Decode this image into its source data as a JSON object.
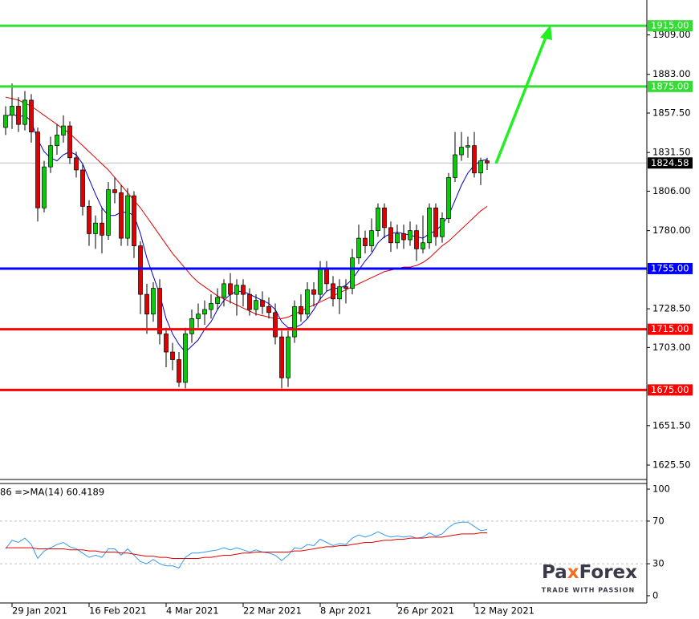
{
  "chart_data": [
    {
      "type": "candlestick",
      "x": [
        null,
        "29 Jan 2021",
        null,
        null,
        null,
        null,
        null,
        null,
        null,
        null,
        null,
        null,
        null,
        "16 Feb 2021",
        null,
        null,
        null,
        null,
        null,
        null,
        null,
        null,
        null,
        null,
        null,
        "4 Mar 2021",
        null,
        null,
        null,
        null,
        null,
        null,
        null,
        null,
        null,
        null,
        null,
        "22 Mar 2021",
        null,
        null,
        null,
        null,
        null,
        null,
        null,
        null,
        null,
        null,
        null,
        "8 Apr 2021",
        null,
        null,
        null,
        null,
        null,
        null,
        null,
        null,
        null,
        null,
        null,
        "26 Apr 2021",
        null,
        null,
        null,
        null,
        null,
        null,
        null,
        null,
        null,
        null,
        null,
        "12 May 2021",
        null,
        null
      ],
      "open": [
        1848,
        1856,
        1862,
        1850,
        1866,
        1845,
        1795,
        1822,
        1836,
        1843,
        1849,
        1828,
        1820,
        1796,
        1778,
        1785,
        1777,
        1807,
        1805,
        1775,
        1803,
        1770,
        1738,
        1725,
        1742,
        1712,
        1700,
        1695,
        1680,
        1712,
        1722,
        1725,
        1728,
        1732,
        1736,
        1745,
        1738,
        1744,
        1738,
        1728,
        1734,
        1730,
        1726,
        1710,
        1683,
        1710,
        1730,
        1725,
        1741,
        1738,
        1755,
        1745,
        1735,
        1743,
        1742,
        1762,
        1775,
        1770,
        1780,
        1795,
        1782,
        1772,
        1778,
        1774,
        1780,
        1768,
        1772,
        1795,
        1776,
        1788,
        1815,
        1830,
        1835,
        1836,
        1818,
        1826
      ],
      "high": [
        1862,
        1877,
        1868,
        1872,
        1870,
        1848,
        1826,
        1842,
        1850,
        1856,
        1852,
        1832,
        1824,
        1800,
        1790,
        1795,
        1812,
        1815,
        1810,
        1808,
        1806,
        1773,
        1745,
        1746,
        1748,
        1716,
        1706,
        1700,
        1716,
        1728,
        1732,
        1734,
        1738,
        1742,
        1748,
        1752,
        1748,
        1748,
        1742,
        1738,
        1740,
        1736,
        1732,
        1714,
        1714,
        1734,
        1738,
        1746,
        1746,
        1760,
        1760,
        1750,
        1748,
        1748,
        1768,
        1784,
        1780,
        1788,
        1798,
        1798,
        1786,
        1784,
        1784,
        1786,
        1784,
        1790,
        1798,
        1798,
        1792,
        1818,
        1845,
        1845,
        1842,
        1845,
        1828,
        1828
      ],
      "low": [
        1843,
        1847,
        1845,
        1846,
        1838,
        1786,
        1792,
        1818,
        1830,
        1838,
        1824,
        1815,
        1790,
        1770,
        1768,
        1765,
        1774,
        1798,
        1770,
        1770,
        1762,
        1725,
        1712,
        1720,
        1705,
        1690,
        1688,
        1677,
        1676,
        1706,
        1716,
        1718,
        1722,
        1728,
        1730,
        1732,
        1724,
        1730,
        1724,
        1724,
        1725,
        1722,
        1705,
        1676,
        1677,
        1706,
        1720,
        1722,
        1730,
        1734,
        1740,
        1730,
        1725,
        1732,
        1738,
        1758,
        1765,
        1766,
        1776,
        1775,
        1766,
        1768,
        1768,
        1770,
        1760,
        1765,
        1768,
        1770,
        1772,
        1785,
        1812,
        1826,
        1828,
        1815,
        1810,
        1820
      ],
      "close": [
        1856,
        1862,
        1850,
        1866,
        1845,
        1795,
        1822,
        1836,
        1843,
        1849,
        1828,
        1820,
        1796,
        1778,
        1785,
        1777,
        1807,
        1805,
        1775,
        1803,
        1770,
        1738,
        1725,
        1742,
        1712,
        1700,
        1695,
        1680,
        1712,
        1722,
        1725,
        1728,
        1732,
        1736,
        1745,
        1738,
        1744,
        1738,
        1728,
        1734,
        1730,
        1726,
        1710,
        1683,
        1710,
        1730,
        1725,
        1741,
        1738,
        1755,
        1745,
        1735,
        1743,
        1742,
        1762,
        1775,
        1770,
        1780,
        1795,
        1782,
        1772,
        1778,
        1774,
        1780,
        1768,
        1772,
        1795,
        1776,
        1788,
        1815,
        1830,
        1835,
        1836,
        1818,
        1826,
        1824.58
      ],
      "up_color": "#00d000",
      "down_color": "#e00000",
      "overlays": [
        {
          "color": "#0000cc",
          "values": [
            1855,
            1857,
            1855,
            1856,
            1852,
            1840,
            1832,
            1828,
            1826,
            1830,
            1832,
            1830,
            1824,
            1814,
            1804,
            1795,
            1790,
            1790,
            1792,
            1792,
            1790,
            1778,
            1762,
            1750,
            1738,
            1722,
            1712,
            1705,
            1700,
            1704,
            1708,
            1715,
            1720,
            1728,
            1734,
            1738,
            1740,
            1740,
            1738,
            1736,
            1734,
            1732,
            1728,
            1720,
            1716,
            1716,
            1718,
            1722,
            1728,
            1735,
            1740,
            1742,
            1742,
            1744,
            1748,
            1754,
            1760,
            1765,
            1772,
            1776,
            1778,
            1779,
            1778,
            1777,
            1776,
            1775,
            1778,
            1780,
            1784,
            1790,
            1800,
            1810,
            1818,
            1823,
            1826,
            1827
          ]
        },
        {
          "color": "#e00000",
          "values": [
            1868,
            1867,
            1866,
            1864,
            1862,
            1859,
            1856,
            1853,
            1850,
            1847,
            1844,
            1840,
            1836,
            1832,
            1828,
            1824,
            1820,
            1815,
            1810,
            1805,
            1800,
            1795,
            1789,
            1783,
            1777,
            1771,
            1765,
            1760,
            1755,
            1750,
            1746,
            1743,
            1740,
            1737,
            1735,
            1733,
            1731,
            1729,
            1727,
            1725,
            1724,
            1723,
            1722,
            1722,
            1723,
            1725,
            1727,
            1729,
            1731,
            1733,
            1735,
            1737,
            1739,
            1741,
            1743,
            1745,
            1747,
            1749,
            1751,
            1753,
            1754,
            1755,
            1756,
            1756,
            1757,
            1759,
            1762,
            1766,
            1770,
            1773,
            1777,
            1781,
            1785,
            1789,
            1793,
            1796
          ]
        }
      ],
      "levels": [
        {
          "value": 1915,
          "label": "1915.00",
          "color": "#33dd33"
        },
        {
          "value": 1875,
          "label": "1875.00",
          "color": "#33dd33"
        },
        {
          "value": 1755,
          "label": "1755.00",
          "color": "#0000ff"
        },
        {
          "value": 1715,
          "label": "1715.00",
          "color": "#ff0000"
        },
        {
          "value": 1675,
          "label": "1675.00",
          "color": "#ff0000"
        }
      ],
      "last_price": {
        "value": 1824.58,
        "label": "1824.58"
      },
      "ylim": [
        1616,
        1932
      ],
      "yticks": [
        {
          "value": 1909,
          "label": "1909.00"
        },
        {
          "value": 1883,
          "label": "1883.00"
        },
        {
          "value": 1857.5,
          "label": "1857.50"
        },
        {
          "value": 1831.5,
          "label": "1831.50"
        },
        {
          "value": 1806,
          "label": "1806.00"
        },
        {
          "value": 1780,
          "label": "1780.00"
        },
        {
          "value": 1728.5,
          "label": "1728.50"
        },
        {
          "value": 1703,
          "label": "1703.00"
        },
        {
          "value": 1651.5,
          "label": "1651.50"
        },
        {
          "value": 1625.5,
          "label": "1625.50"
        }
      ]
    },
    {
      "type": "line",
      "label": "86  =>MA(14) 60.4189",
      "series": [
        {
          "color": "#3399ee",
          "values": [
            44,
            52,
            50,
            54,
            48,
            35,
            42,
            45,
            48,
            50,
            46,
            44,
            40,
            36,
            38,
            36,
            44,
            44,
            38,
            44,
            38,
            32,
            30,
            34,
            30,
            28,
            28,
            26,
            36,
            40,
            40,
            41,
            42,
            43,
            45,
            43,
            45,
            43,
            41,
            43,
            41,
            40,
            38,
            33,
            38,
            45,
            44,
            48,
            47,
            53,
            50,
            47,
            49,
            48,
            54,
            57,
            55,
            57,
            60,
            57,
            55,
            56,
            55,
            56,
            54,
            55,
            59,
            56,
            58,
            64,
            68,
            69,
            69,
            65,
            61,
            62
          ]
        },
        {
          "color": "#e00000",
          "values": [
            45,
            45,
            45,
            45,
            45,
            44,
            44,
            44,
            44,
            44,
            43,
            43,
            43,
            42,
            42,
            41,
            41,
            41,
            40,
            40,
            39,
            38,
            37,
            37,
            36,
            36,
            35,
            35,
            35,
            35,
            35,
            36,
            36,
            37,
            38,
            38,
            39,
            40,
            40,
            41,
            41,
            41,
            41,
            41,
            41,
            42,
            42,
            43,
            44,
            45,
            46,
            46,
            47,
            47,
            48,
            49,
            50,
            50,
            51,
            52,
            52,
            53,
            53,
            54,
            54,
            54,
            55,
            55,
            55,
            56,
            57,
            58,
            58,
            58,
            59,
            59
          ]
        }
      ],
      "levels": [
        70,
        30
      ],
      "ylim": [
        -6.8,
        105.3
      ],
      "yticks": [
        100,
        70,
        30,
        0
      ]
    }
  ],
  "brand": {
    "parts": [
      "Pa",
      "x",
      "Forex"
    ],
    "tagline": "TRADE WITH PASSION"
  }
}
